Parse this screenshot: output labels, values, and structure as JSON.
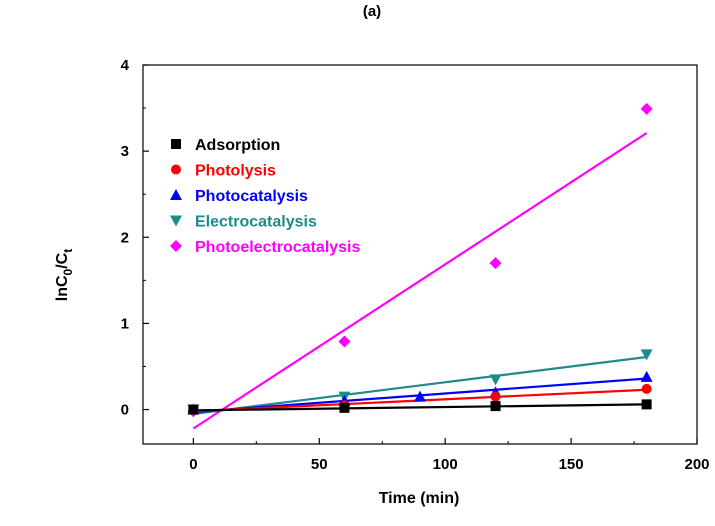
{
  "panel_label": "(a)",
  "chart_data": {
    "type": "scatter",
    "title": "",
    "xlabel": "Time (min)",
    "ylabel": {
      "main": "lnC",
      "sub1": "0",
      "mid": "/C",
      "sub2": "t"
    },
    "xlim": [
      -20,
      200
    ],
    "ylim": [
      -0.4,
      4
    ],
    "x_ticks": [
      0,
      50,
      100,
      150,
      200
    ],
    "y_ticks": [
      0,
      1,
      2,
      3,
      4
    ],
    "grid": false,
    "legend_position": "upper-left",
    "series": [
      {
        "name": "Adsorption",
        "marker": "square",
        "color": "#000000",
        "points": [
          [
            0,
            0
          ],
          [
            60,
            0.02
          ],
          [
            120,
            0.04
          ],
          [
            180,
            0.06
          ]
        ],
        "fit": [
          [
            0,
            -0.01
          ],
          [
            180,
            0.06
          ]
        ]
      },
      {
        "name": "Photolysis",
        "marker": "circle",
        "color": "#ff0000",
        "points": [
          [
            0,
            0
          ],
          [
            60,
            0.05
          ],
          [
            120,
            0.15
          ],
          [
            180,
            0.24
          ]
        ],
        "fit": [
          [
            0,
            -0.02
          ],
          [
            180,
            0.23
          ]
        ]
      },
      {
        "name": "Photocatalysis",
        "marker": "triangle-up",
        "color": "#0000ff",
        "points": [
          [
            0,
            0
          ],
          [
            60,
            0.1
          ],
          [
            90,
            0.15
          ],
          [
            120,
            0.2
          ],
          [
            180,
            0.38
          ]
        ],
        "fit": [
          [
            0,
            -0.03
          ],
          [
            180,
            0.36
          ]
        ]
      },
      {
        "name": "Electrocatalysis",
        "marker": "triangle-down",
        "color": "#1f8a8a",
        "points": [
          [
            0,
            0
          ],
          [
            60,
            0.15
          ],
          [
            120,
            0.35
          ],
          [
            180,
            0.64
          ]
        ],
        "fit": [
          [
            0,
            -0.05
          ],
          [
            180,
            0.61
          ]
        ]
      },
      {
        "name": "Photoelectrocatalysis",
        "marker": "diamond",
        "color": "#ff00ff",
        "points": [
          [
            0,
            -0.02
          ],
          [
            60,
            0.79
          ],
          [
            120,
            1.7
          ],
          [
            180,
            3.49
          ]
        ],
        "fit": [
          [
            0,
            -0.22
          ],
          [
            180,
            3.21
          ]
        ]
      }
    ]
  }
}
